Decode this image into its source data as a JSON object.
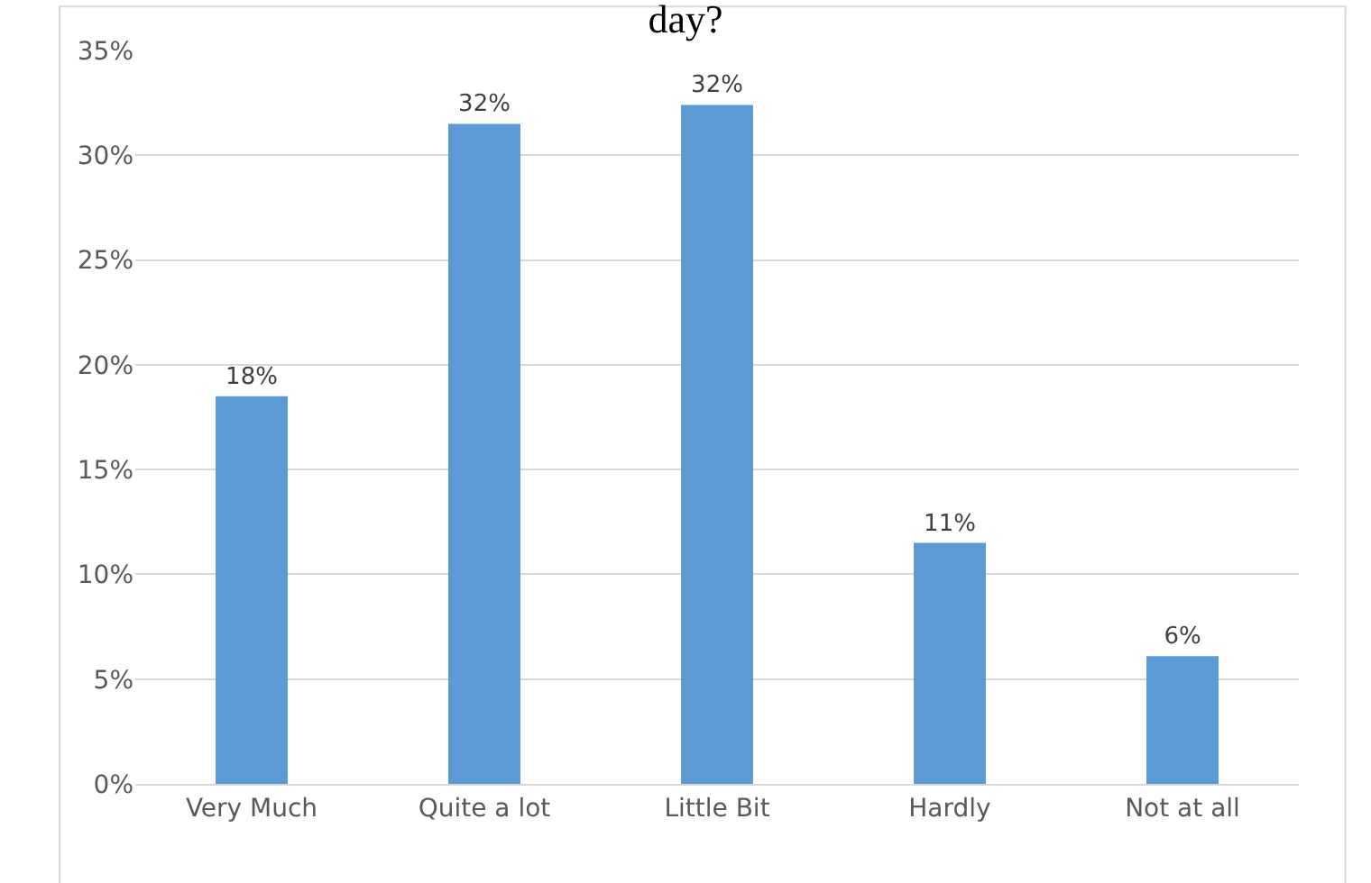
{
  "chart_data": {
    "type": "bar",
    "title": "day?",
    "categories": [
      "Very Much",
      "Quite a lot",
      "Little Bit",
      "Hardly",
      "Not at all"
    ],
    "values": [
      18.5,
      31.5,
      32.4,
      11.5,
      6.1
    ],
    "value_labels": [
      "18%",
      "32%",
      "32%",
      "11%",
      "6%"
    ],
    "color": "#5b9bd5",
    "ylim": [
      0,
      35
    ],
    "yticks": [
      {
        "value": 0,
        "label": "0%"
      },
      {
        "value": 5,
        "label": "5%"
      },
      {
        "value": 10,
        "label": "10%"
      },
      {
        "value": 15,
        "label": "15%"
      },
      {
        "value": 20,
        "label": "20%"
      },
      {
        "value": 25,
        "label": "25%"
      },
      {
        "value": 30,
        "label": "30%"
      },
      {
        "value": 35,
        "label": "35%"
      }
    ],
    "grid": "y",
    "legend": false
  }
}
